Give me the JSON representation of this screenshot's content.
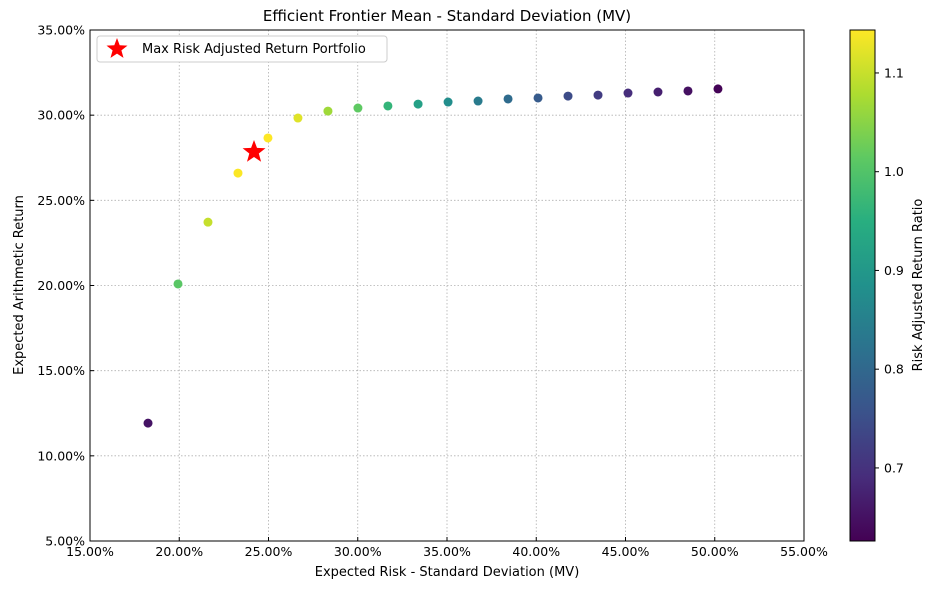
{
  "chart_data": {
    "type": "scatter",
    "title": "Efficient Frontier Mean - Standard Deviation (MV)",
    "xlabel": "Expected Risk - Standard Deviation (MV)",
    "ylabel": "Expected Arithmetic Return",
    "xlim": [
      0.15,
      0.55
    ],
    "ylim": [
      0.05,
      0.35
    ],
    "xticks": [
      0.15,
      0.2,
      0.25,
      0.3,
      0.35,
      0.4,
      0.45,
      0.5,
      0.55
    ],
    "xtick_labels": [
      "15.00%",
      "20.00%",
      "25.00%",
      "30.00%",
      "35.00%",
      "40.00%",
      "45.00%",
      "50.00%",
      "55.00%"
    ],
    "yticks": [
      0.05,
      0.1,
      0.15,
      0.2,
      0.25,
      0.3,
      0.35
    ],
    "ytick_labels": [
      "5.00%",
      "10.00%",
      "15.00%",
      "20.00%",
      "25.00%",
      "30.00%",
      "35.00%"
    ],
    "grid": true,
    "points": {
      "x": [
        0.1825,
        0.1993,
        0.2161,
        0.2329,
        0.2497,
        0.2665,
        0.2833,
        0.3001,
        0.3169,
        0.3338,
        0.3506,
        0.3674,
        0.3842,
        0.401,
        0.4178,
        0.4346,
        0.4514,
        0.4682,
        0.485,
        0.5018
      ],
      "y": [
        0.1192,
        0.2009,
        0.2372,
        0.266,
        0.2866,
        0.2983,
        0.3024,
        0.3042,
        0.3054,
        0.3065,
        0.3077,
        0.3083,
        0.3095,
        0.3101,
        0.3112,
        0.3118,
        0.313,
        0.3136,
        0.3142,
        0.3154
      ],
      "ratio": [
        0.653,
        1.008,
        1.098,
        1.142,
        1.148,
        1.119,
        1.067,
        1.014,
        0.964,
        0.918,
        0.878,
        0.839,
        0.806,
        0.773,
        0.745,
        0.717,
        0.693,
        0.67,
        0.648,
        0.629
      ]
    },
    "highlight": {
      "x": 0.2419,
      "y": 0.2784,
      "color": "#ff0000",
      "marker": "star",
      "label": "Max Risk Adjusted Return Portfolio"
    },
    "legend": {
      "placement": "top-left",
      "entries": [
        "Max Risk Adjusted Return Portfolio"
      ]
    },
    "colorbar": {
      "label": "Risk Adjusted Return Ratio",
      "colormap": "viridis",
      "range": [
        0.626,
        1.1435
      ],
      "ticks": [
        0.7,
        0.8,
        0.9,
        1.0,
        1.1
      ],
      "tick_labels": [
        "0.7",
        "0.8",
        "0.9",
        "1.0",
        "1.1"
      ]
    }
  }
}
